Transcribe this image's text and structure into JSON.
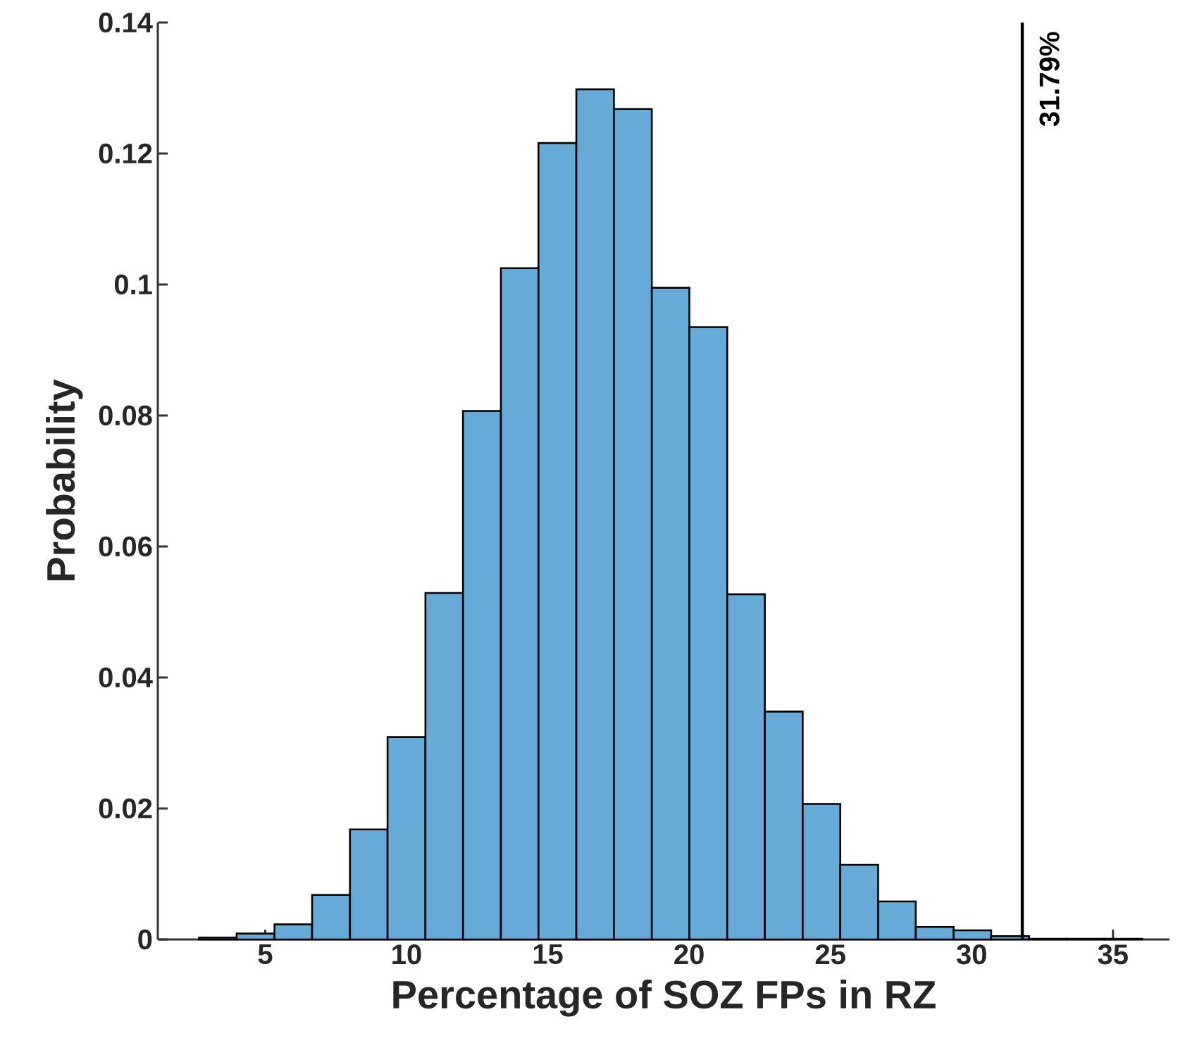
{
  "chart_data": {
    "type": "histogram",
    "xlabel": "Percentage of SOZ FPs in RZ",
    "ylabel": "Probability",
    "color": "#66aad8",
    "bins": [
      2.66,
      3.99,
      5.33,
      6.66,
      8.0,
      9.33,
      10.67,
      12.0,
      13.34,
      14.67,
      16.01,
      17.34,
      18.68,
      20.01,
      21.35,
      22.68,
      24.02,
      25.35,
      26.69,
      28.02,
      29.36,
      30.69,
      32.03,
      33.36,
      34.7,
      36.03
    ],
    "values": [
      0.0003,
      0.0009,
      0.0023,
      0.0068,
      0.0168,
      0.0309,
      0.0529,
      0.0807,
      0.1025,
      0.1216,
      0.1298,
      0.1268,
      0.0995,
      0.0935,
      0.0527,
      0.0348,
      0.0207,
      0.0114,
      0.0058,
      0.0019,
      0.0014,
      0.0005,
      0.0001,
      0.0001,
      0.0001
    ],
    "xlim": [
      1.2,
      37
    ],
    "ylim": [
      0,
      0.14
    ],
    "xticks": [
      5,
      10,
      15,
      20,
      25,
      30,
      35
    ],
    "yticks": [
      0,
      {
        "value": 0.02,
        "label": "0.02"
      },
      {
        "value": 0.04,
        "label": "0.04"
      },
      {
        "value": 0.06,
        "label": "0.06"
      },
      {
        "value": 0.08,
        "label": "0.08"
      },
      {
        "value": 0.1,
        "label": "0.1"
      },
      {
        "value": 0.12,
        "label": "0.12"
      },
      {
        "value": 0.14,
        "label": "0.14"
      }
    ],
    "ref_lines": [
      {
        "axis": "x",
        "value": 31.79,
        "label": "31.79%",
        "color": "#000000"
      }
    ]
  }
}
